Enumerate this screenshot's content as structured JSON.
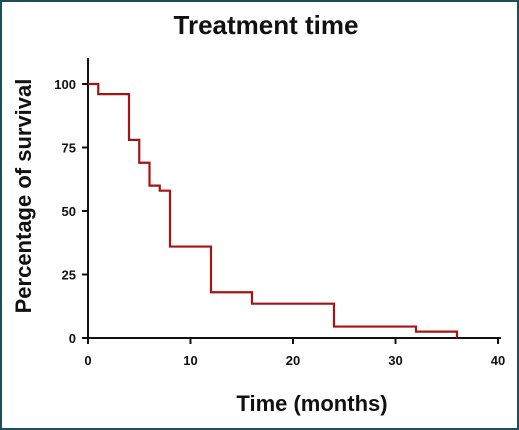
{
  "chart_data": {
    "type": "line",
    "step": "post",
    "title": "Treatment time",
    "xlabel": "Time (months)",
    "ylabel": "Percentage of survival",
    "xlim": [
      0,
      40
    ],
    "ylim": [
      0,
      100
    ],
    "xticks": [
      0,
      10,
      20,
      30,
      40
    ],
    "yticks": [
      0,
      25,
      50,
      75,
      100
    ],
    "ytick_labels": [
      "0",
      "25",
      "50",
      "75",
      "100"
    ],
    "grid": false,
    "legend": "none",
    "series": [
      {
        "color": "#a31515",
        "x": [
          0,
          1,
          4,
          5,
          6,
          7,
          8,
          12,
          16,
          24,
          32,
          36
        ],
        "y": [
          100,
          96,
          78,
          69,
          60,
          58,
          36,
          18,
          13.5,
          4.5,
          2.5,
          0
        ]
      }
    ]
  }
}
